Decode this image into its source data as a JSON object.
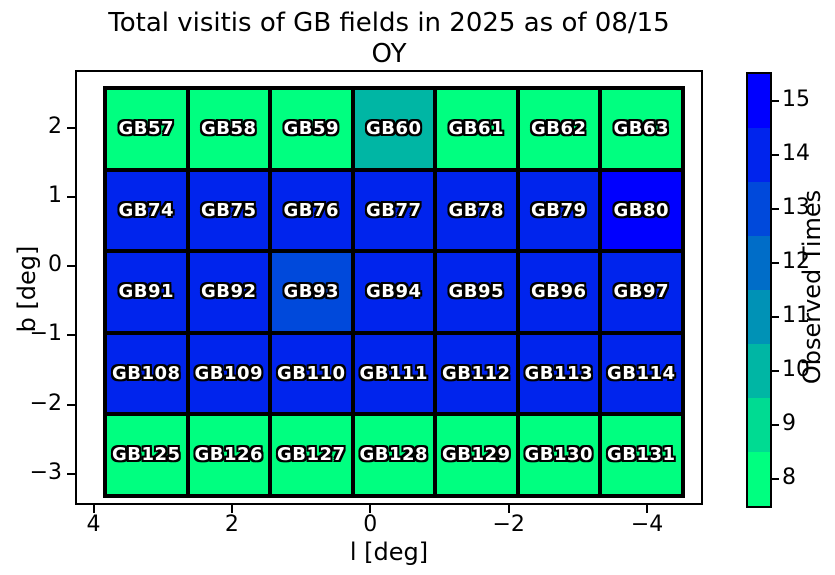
{
  "figure": {
    "title_line1": "Total visitis of GB fields in 2025 as of 08/15",
    "title_line2": "OY",
    "background": "#ffffff"
  },
  "axes": {
    "xlabel": "l [deg]",
    "ylabel": "b [deg]",
    "x_ticks": [
      "4",
      "2",
      "0",
      "−2",
      "−4"
    ],
    "y_ticks": [
      "2",
      "1",
      "0",
      "−1",
      "−2",
      "−3"
    ]
  },
  "colorbar": {
    "label": "Observed Times",
    "tick_labels_top_to_bottom": [
      "15",
      "14",
      "13",
      "12",
      "11",
      "10",
      "9",
      "8"
    ],
    "segment_colors_top_to_bottom": [
      "#0000ff",
      "#0024ed",
      "#0049db",
      "#006dc8",
      "#0092b6",
      "#00b6a4",
      "#00db92",
      "#00ff80"
    ]
  },
  "chart_data": {
    "type": "heatmap",
    "title": "Total visitis of GB fields in 2025 as of 08/15 OY",
    "xlabel": "l [deg]",
    "ylabel": "b [deg]",
    "x_tick_labels": [
      "4",
      "2",
      "0",
      "-2",
      "-4"
    ],
    "y_tick_labels": [
      "2",
      "1",
      "0",
      "-1",
      "-2",
      "-3"
    ],
    "x_range": [
      4.3,
      -4.8
    ],
    "y_range": [
      2.9,
      -3.4
    ],
    "colorbar_label": "Observed Times",
    "value_range": [
      8,
      15
    ],
    "colormap": "winter_r (discrete, 8 levels)",
    "palette": {
      "8": "#00ff80",
      "9": "#00db92",
      "10": "#00b6a4",
      "11": "#0092b6",
      "12": "#006dc8",
      "13": "#0049db",
      "14": "#0024ed",
      "15": "#0000ff"
    },
    "grid": {
      "row_b_centers": [
        2.0,
        0.8,
        -0.4,
        -1.6,
        -2.8
      ],
      "rows": [
        {
          "labels": [
            "GB57",
            "GB58",
            "GB59",
            "GB60",
            "GB61",
            "GB62",
            "GB63"
          ],
          "values": [
            8,
            8,
            8,
            10,
            8,
            8,
            8
          ]
        },
        {
          "labels": [
            "GB74",
            "GB75",
            "GB76",
            "GB77",
            "GB78",
            "GB79",
            "GB80"
          ],
          "values": [
            14,
            14,
            14,
            14,
            14,
            14,
            15
          ]
        },
        {
          "labels": [
            "GB91",
            "GB92",
            "GB93",
            "GB94",
            "GB95",
            "GB96",
            "GB97"
          ],
          "values": [
            14,
            14,
            13,
            14,
            14,
            14,
            14
          ]
        },
        {
          "labels": [
            "GB108",
            "GB109",
            "GB110",
            "GB111",
            "GB112",
            "GB113",
            "GB114"
          ],
          "values": [
            14,
            14,
            14,
            14,
            14,
            14,
            14
          ]
        },
        {
          "labels": [
            "GB125",
            "GB126",
            "GB127",
            "GB128",
            "GB129",
            "GB130",
            "GB131"
          ],
          "values": [
            8,
            8,
            8,
            8,
            8,
            8,
            8
          ]
        }
      ]
    }
  }
}
